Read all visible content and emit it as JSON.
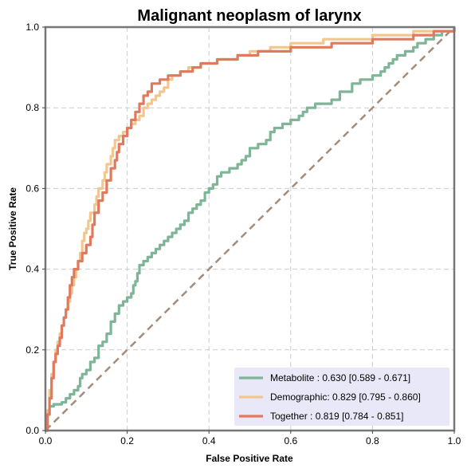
{
  "chart_data": {
    "type": "line",
    "title": "Malignant neoplasm of larynx",
    "xlabel": "False Positive Rate",
    "ylabel": "True Positive Rate",
    "xlim": [
      0,
      1
    ],
    "ylim": [
      0,
      1
    ],
    "xticks": [
      "0.0",
      "0.2",
      "0.4",
      "0.6",
      "0.8",
      "1.0"
    ],
    "yticks": [
      "0.0",
      "0.2",
      "0.4",
      "0.6",
      "0.8",
      "1.0"
    ],
    "grid": true,
    "legend_position": "bottom-right",
    "series": [
      {
        "name": "Metabolite",
        "legend_label": "Metabolite     : 0.630 [0.589 - 0.671]",
        "color": "#7fb597",
        "points": [
          [
            0,
            0
          ],
          [
            0.005,
            0.04
          ],
          [
            0.01,
            0.06
          ],
          [
            0.02,
            0.065
          ],
          [
            0.04,
            0.07
          ],
          [
            0.05,
            0.08
          ],
          [
            0.06,
            0.09
          ],
          [
            0.07,
            0.1
          ],
          [
            0.08,
            0.11
          ],
          [
            0.085,
            0.13
          ],
          [
            0.09,
            0.14
          ],
          [
            0.1,
            0.15
          ],
          [
            0.11,
            0.17
          ],
          [
            0.12,
            0.18
          ],
          [
            0.13,
            0.21
          ],
          [
            0.14,
            0.22
          ],
          [
            0.15,
            0.24
          ],
          [
            0.16,
            0.27
          ],
          [
            0.17,
            0.29
          ],
          [
            0.18,
            0.31
          ],
          [
            0.19,
            0.32
          ],
          [
            0.2,
            0.33
          ],
          [
            0.21,
            0.34
          ],
          [
            0.215,
            0.36
          ],
          [
            0.22,
            0.37
          ],
          [
            0.225,
            0.39
          ],
          [
            0.23,
            0.41
          ],
          [
            0.24,
            0.42
          ],
          [
            0.25,
            0.43
          ],
          [
            0.26,
            0.44
          ],
          [
            0.27,
            0.45
          ],
          [
            0.28,
            0.46
          ],
          [
            0.29,
            0.47
          ],
          [
            0.3,
            0.48
          ],
          [
            0.31,
            0.49
          ],
          [
            0.32,
            0.5
          ],
          [
            0.33,
            0.51
          ],
          [
            0.34,
            0.52
          ],
          [
            0.35,
            0.54
          ],
          [
            0.36,
            0.55
          ],
          [
            0.37,
            0.56
          ],
          [
            0.38,
            0.57
          ],
          [
            0.39,
            0.59
          ],
          [
            0.4,
            0.6
          ],
          [
            0.41,
            0.61
          ],
          [
            0.42,
            0.63
          ],
          [
            0.43,
            0.64
          ],
          [
            0.45,
            0.65
          ],
          [
            0.47,
            0.66
          ],
          [
            0.48,
            0.67
          ],
          [
            0.49,
            0.68
          ],
          [
            0.5,
            0.7
          ],
          [
            0.52,
            0.71
          ],
          [
            0.54,
            0.72
          ],
          [
            0.55,
            0.74
          ],
          [
            0.56,
            0.75
          ],
          [
            0.58,
            0.76
          ],
          [
            0.6,
            0.77
          ],
          [
            0.62,
            0.78
          ],
          [
            0.63,
            0.79
          ],
          [
            0.64,
            0.8
          ],
          [
            0.66,
            0.81
          ],
          [
            0.7,
            0.82
          ],
          [
            0.72,
            0.84
          ],
          [
            0.75,
            0.86
          ],
          [
            0.77,
            0.87
          ],
          [
            0.8,
            0.88
          ],
          [
            0.82,
            0.89
          ],
          [
            0.83,
            0.9
          ],
          [
            0.84,
            0.91
          ],
          [
            0.85,
            0.92
          ],
          [
            0.86,
            0.93
          ],
          [
            0.88,
            0.94
          ],
          [
            0.9,
            0.95
          ],
          [
            0.91,
            0.96
          ],
          [
            0.93,
            0.97
          ],
          [
            0.95,
            0.98
          ],
          [
            0.97,
            0.99
          ],
          [
            1,
            1
          ]
        ]
      },
      {
        "name": "Demographic",
        "legend_label": "Demographic: 0.829 [0.795 - 0.860]",
        "color": "#f2c78f",
        "points": [
          [
            0,
            0
          ],
          [
            0.005,
            0.05
          ],
          [
            0.01,
            0.1
          ],
          [
            0.015,
            0.14
          ],
          [
            0.02,
            0.17
          ],
          [
            0.025,
            0.2
          ],
          [
            0.03,
            0.22
          ],
          [
            0.035,
            0.24
          ],
          [
            0.04,
            0.26
          ],
          [
            0.045,
            0.28
          ],
          [
            0.05,
            0.3
          ],
          [
            0.055,
            0.32
          ],
          [
            0.06,
            0.34
          ],
          [
            0.065,
            0.36
          ],
          [
            0.07,
            0.38
          ],
          [
            0.075,
            0.4
          ],
          [
            0.08,
            0.42
          ],
          [
            0.085,
            0.44
          ],
          [
            0.09,
            0.47
          ],
          [
            0.095,
            0.49
          ],
          [
            0.1,
            0.5
          ],
          [
            0.105,
            0.52
          ],
          [
            0.11,
            0.54
          ],
          [
            0.12,
            0.56
          ],
          [
            0.125,
            0.58
          ],
          [
            0.13,
            0.6
          ],
          [
            0.14,
            0.62
          ],
          [
            0.145,
            0.64
          ],
          [
            0.15,
            0.66
          ],
          [
            0.16,
            0.68
          ],
          [
            0.165,
            0.7
          ],
          [
            0.17,
            0.72
          ],
          [
            0.18,
            0.73
          ],
          [
            0.19,
            0.74
          ],
          [
            0.2,
            0.75
          ],
          [
            0.21,
            0.76
          ],
          [
            0.22,
            0.77
          ],
          [
            0.23,
            0.78
          ],
          [
            0.24,
            0.8
          ],
          [
            0.25,
            0.81
          ],
          [
            0.26,
            0.82
          ],
          [
            0.27,
            0.83
          ],
          [
            0.28,
            0.84
          ],
          [
            0.29,
            0.85
          ],
          [
            0.3,
            0.87
          ],
          [
            0.31,
            0.88
          ],
          [
            0.33,
            0.89
          ],
          [
            0.35,
            0.9
          ],
          [
            0.38,
            0.91
          ],
          [
            0.42,
            0.92
          ],
          [
            0.47,
            0.93
          ],
          [
            0.5,
            0.94
          ],
          [
            0.55,
            0.95
          ],
          [
            0.6,
            0.96
          ],
          [
            0.68,
            0.97
          ],
          [
            0.8,
            0.98
          ],
          [
            0.9,
            0.99
          ],
          [
            1,
            1
          ]
        ]
      },
      {
        "name": "Together",
        "legend_label": "Together       : 0.819 [0.784 - 0.851]",
        "color": "#e07a5f",
        "points": [
          [
            0,
            0
          ],
          [
            0.005,
            0.04
          ],
          [
            0.01,
            0.08
          ],
          [
            0.015,
            0.13
          ],
          [
            0.02,
            0.17
          ],
          [
            0.025,
            0.19
          ],
          [
            0.03,
            0.21
          ],
          [
            0.035,
            0.23
          ],
          [
            0.04,
            0.26
          ],
          [
            0.045,
            0.28
          ],
          [
            0.05,
            0.3
          ],
          [
            0.055,
            0.33
          ],
          [
            0.06,
            0.36
          ],
          [
            0.065,
            0.38
          ],
          [
            0.07,
            0.4
          ],
          [
            0.08,
            0.42
          ],
          [
            0.09,
            0.44
          ],
          [
            0.1,
            0.46
          ],
          [
            0.11,
            0.48
          ],
          [
            0.115,
            0.51
          ],
          [
            0.12,
            0.54
          ],
          [
            0.13,
            0.57
          ],
          [
            0.14,
            0.59
          ],
          [
            0.15,
            0.62
          ],
          [
            0.16,
            0.65
          ],
          [
            0.17,
            0.67
          ],
          [
            0.175,
            0.69
          ],
          [
            0.18,
            0.71
          ],
          [
            0.19,
            0.73
          ],
          [
            0.2,
            0.75
          ],
          [
            0.21,
            0.77
          ],
          [
            0.22,
            0.79
          ],
          [
            0.23,
            0.81
          ],
          [
            0.24,
            0.83
          ],
          [
            0.25,
            0.84
          ],
          [
            0.26,
            0.86
          ],
          [
            0.28,
            0.87
          ],
          [
            0.3,
            0.88
          ],
          [
            0.33,
            0.89
          ],
          [
            0.36,
            0.9
          ],
          [
            0.38,
            0.91
          ],
          [
            0.42,
            0.92
          ],
          [
            0.47,
            0.93
          ],
          [
            0.52,
            0.94
          ],
          [
            0.6,
            0.95
          ],
          [
            0.7,
            0.96
          ],
          [
            0.8,
            0.97
          ],
          [
            0.9,
            0.98
          ],
          [
            0.95,
            0.99
          ],
          [
            1,
            1
          ]
        ]
      }
    ],
    "reference_line": {
      "points": [
        [
          0,
          0
        ],
        [
          1,
          1
        ]
      ],
      "color": "#a58c7a",
      "style": "dashed"
    },
    "legend_background": "#e8e8f8"
  }
}
